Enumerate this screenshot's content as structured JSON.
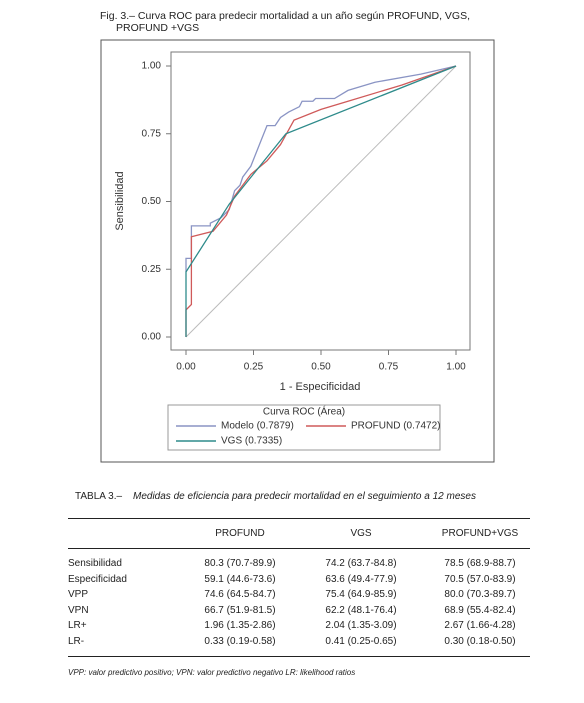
{
  "caption": "Fig. 3.– Curva ROC para predecir mortalidad a un año según PROFUND, VGS, PROFUND +VGS",
  "chart_data": {
    "type": "line",
    "xlabel": "1 - Especificidad",
    "ylabel": "Sensibilidad",
    "legend_title": "Curva ROC (Área)",
    "xlim": [
      0,
      1
    ],
    "ylim": [
      0,
      1
    ],
    "xticks": [
      {
        "value": 0,
        "label": "0.00"
      },
      {
        "value": 0.25,
        "label": "0.25"
      },
      {
        "value": 0.5,
        "label": "0.50"
      },
      {
        "value": 0.75,
        "label": "0.75"
      },
      {
        "value": 1,
        "label": "1.00"
      }
    ],
    "yticks": [
      {
        "value": 0,
        "label": "0.00"
      },
      {
        "value": 0.25,
        "label": "0.25"
      },
      {
        "value": 0.5,
        "label": "0.50"
      },
      {
        "value": 0.75,
        "label": "0.75"
      },
      {
        "value": 1,
        "label": "1.00"
      }
    ],
    "series": [
      {
        "name": "Modelo (0.7879)",
        "color": "#8a94c4",
        "x": [
          0,
          0,
          0.02,
          0.02,
          0.09,
          0.09,
          0.13,
          0.16,
          0.18,
          0.2,
          0.21,
          0.24,
          0.28,
          0.3,
          0.33,
          0.35,
          0.38,
          0.42,
          0.43,
          0.47,
          0.48,
          0.55,
          0.6,
          0.7,
          0.87,
          1
        ],
        "values": [
          0.24,
          0.29,
          0.29,
          0.41,
          0.41,
          0.42,
          0.44,
          0.47,
          0.54,
          0.56,
          0.59,
          0.63,
          0.73,
          0.78,
          0.78,
          0.81,
          0.83,
          0.85,
          0.87,
          0.87,
          0.88,
          0.88,
          0.91,
          0.94,
          0.97,
          1
        ]
      },
      {
        "name": "PROFUND (0.7472)",
        "color": "#cf5a5a",
        "x": [
          0,
          0,
          0.02,
          0.02,
          0.1,
          0.15,
          0.18,
          0.21,
          0.24,
          0.3,
          0.35,
          0.4,
          0.5,
          0.6,
          0.8,
          1
        ],
        "values": [
          0,
          0.1,
          0.12,
          0.37,
          0.39,
          0.45,
          0.52,
          0.56,
          0.6,
          0.65,
          0.71,
          0.8,
          0.84,
          0.87,
          0.93,
          1
        ]
      },
      {
        "name": "VGS (0.7335)",
        "color": "#2e8b8b",
        "x": [
          0,
          0,
          0.16,
          0.37,
          1
        ],
        "values": [
          0,
          0.24,
          0.49,
          0.75,
          1
        ]
      }
    ]
  },
  "table": {
    "label": "TABLA 3.–",
    "title": "Medidas de eficiencia para predecir mortalidad en el seguimiento a 12 meses",
    "header": [
      "PROFUND",
      "VGS",
      "PROFUND+VGS"
    ],
    "rows": [
      [
        "Sensibilidad",
        "80.3 (70.7-89.9)",
        "74.2 (63.7-84.8)",
        "78.5 (68.9-88.7)"
      ],
      [
        "Especificidad",
        "59.1 (44.6-73.6)",
        "63.6 (49.4-77.9)",
        "70.5 (57.0-83.9)"
      ],
      [
        "VPP",
        "74.6 (64.5-84.7)",
        "75.4 (64.9-85.9)",
        "80.0 (70.3-89.7)"
      ],
      [
        "VPN",
        "66.7 (51.9-81.5)",
        "62.2 (48.1-76.4)",
        "68.9 (55.4-82.4)"
      ],
      [
        "LR+",
        "1.96 (1.35-2.86)",
        "2.04 (1.35-3.09)",
        "2.67 (1.66-4.28)"
      ],
      [
        "LR-",
        "0.33 (0.19-0.58)",
        "0.41 (0.25-0.65)",
        "0.30 (0.18-0.50)"
      ]
    ],
    "footnote": "VPP: valor predictivo positivo; VPN: valor predictivo negativo LR: likelihood ratios"
  }
}
